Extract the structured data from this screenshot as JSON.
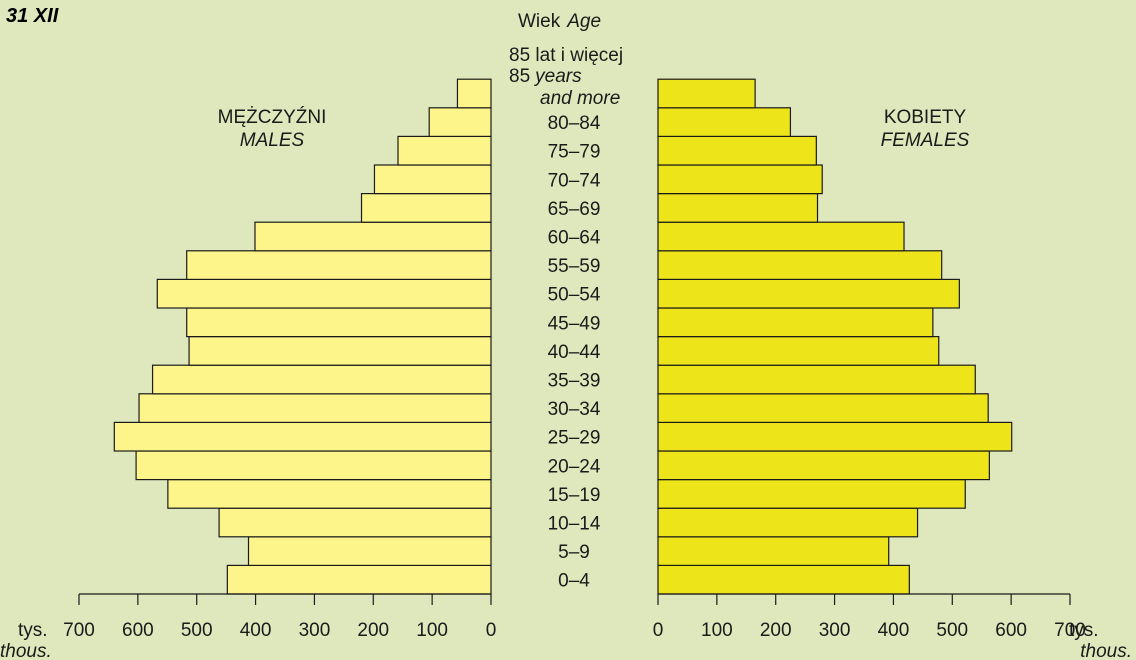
{
  "header": {
    "date": "31 XII",
    "age_label": "Wiek",
    "age_label_en": "Age"
  },
  "top_group": {
    "line1": "85 lat i więcej",
    "line2_prefix": "85",
    "line2_italic": "years",
    "line3": "and more"
  },
  "males": {
    "label": "MĘŻCZYŹNI",
    "label_en": "MALES"
  },
  "females": {
    "label": "KOBIETY",
    "label_en": "FEMALES"
  },
  "unit": {
    "label": "tys.",
    "label_en": "thous."
  },
  "colors": {
    "background": "#dfe8bd",
    "male_bar": "#fdf58a",
    "female_bar": "#ede51a",
    "stroke": "#1a1a1a"
  },
  "chart_data": {
    "type": "bar",
    "orientation": "horizontal",
    "title": "31 XII",
    "categories": [
      "0–4",
      "5–9",
      "10–14",
      "15–19",
      "20–24",
      "25–29",
      "30–34",
      "35–39",
      "40–44",
      "45–49",
      "50–54",
      "55–59",
      "60–64",
      "65–69",
      "70–74",
      "75–79",
      "80–84",
      "85 lat i więcej"
    ],
    "series": [
      {
        "name": "MĘŻCZYŹNI MALES",
        "values": [
          448,
          412,
          462,
          549,
          603,
          640,
          598,
          575,
          513,
          517,
          567,
          517,
          401,
          220,
          198,
          158,
          105,
          57
        ]
      },
      {
        "name": "KOBIETY FEMALES",
        "values": [
          427,
          392,
          441,
          522,
          563,
          601,
          561,
          539,
          477,
          467,
          512,
          482,
          418,
          271,
          279,
          269,
          225,
          165
        ]
      }
    ],
    "xlim": [
      0,
      700
    ],
    "x_ticks": [
      0,
      100,
      200,
      300,
      400,
      500,
      600,
      700
    ],
    "xlabel": "tys. thous.",
    "ylabel": "Wiek Age",
    "legend": "none",
    "grid": false
  }
}
